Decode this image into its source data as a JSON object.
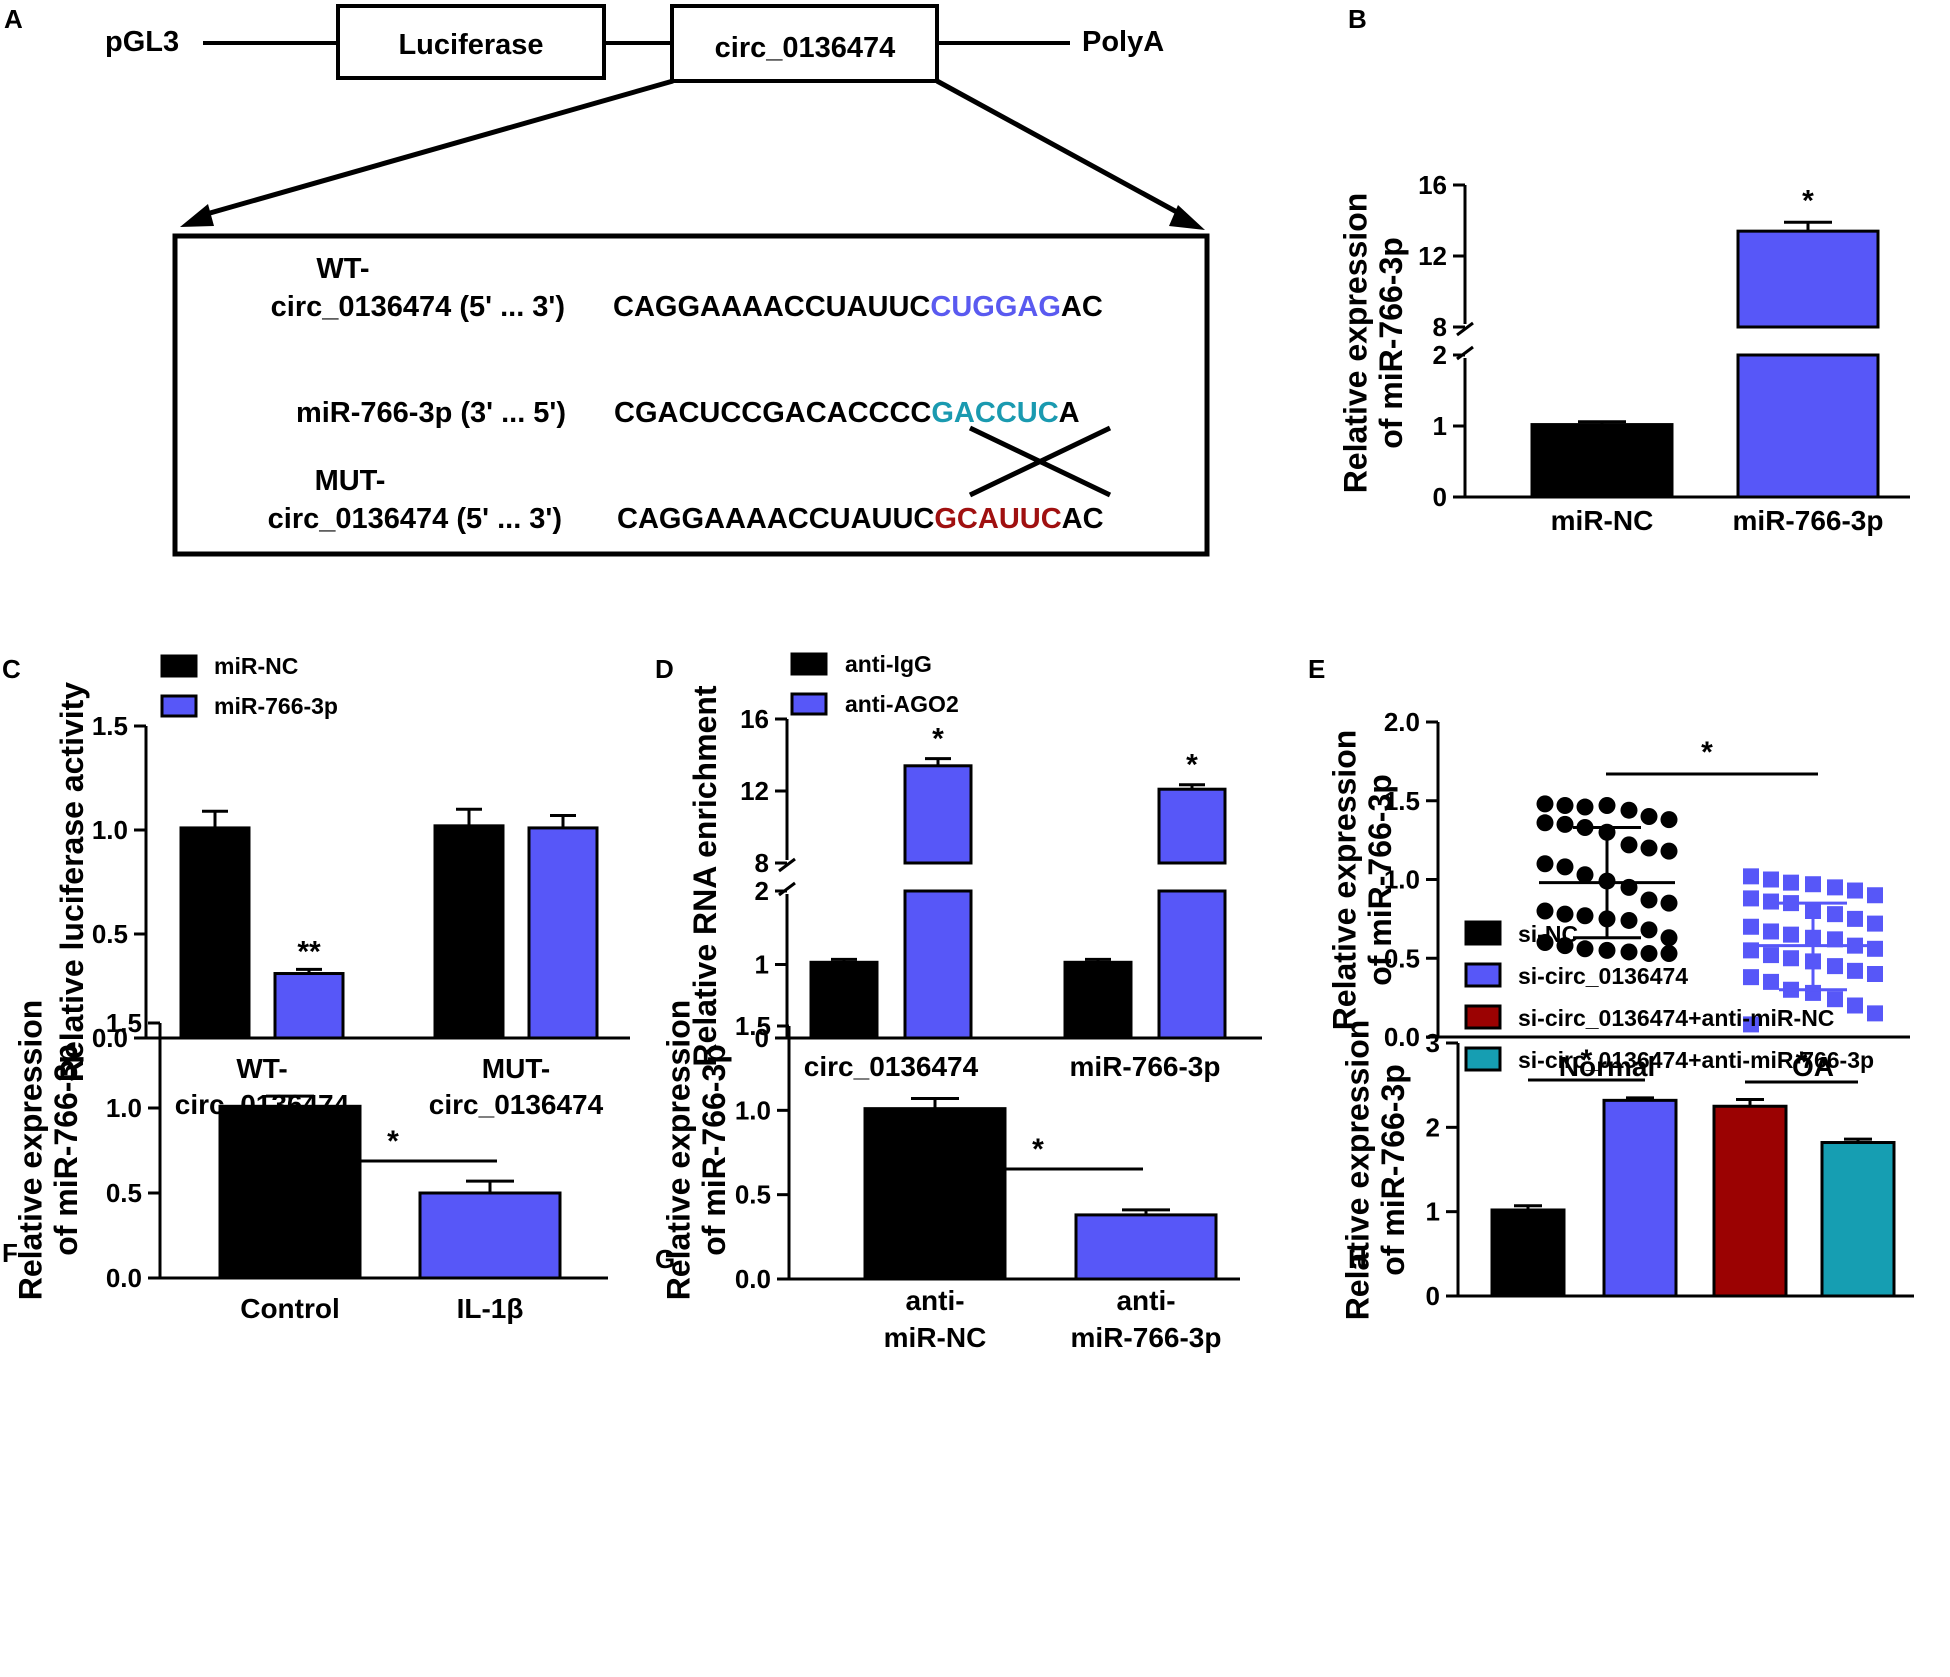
{
  "colors": {
    "black": "#000000",
    "blue": "#5757f8",
    "darkred": "#9b0202",
    "teal": "#169eb2",
    "seq_wt_highlight": "#5a5af0",
    "seq_mir_highlight": "#1a9ab0",
    "seq_mut_highlight": "#a01010"
  },
  "panel_a": {
    "letter": "A",
    "pgl3": "pGL3",
    "luciferase": "Luciferase",
    "circ": "circ_0136474",
    "polya": "PolyA",
    "wt_label_1": "WT-",
    "wt_label_2": "circ_0136474 (5' ... 3')",
    "mir_label": "miR-766-3p (3' ... 5')",
    "mut_label_1": "MUT-",
    "mut_label_2": "circ_0136474 (5' ... 3')",
    "wt_seq_pre": "CAGGAAAACCUAUUC",
    "wt_seq_hl": "CUGGAG",
    "wt_seq_post": "AC",
    "mir_seq_pre": "CGACUCCGACACCCC",
    "mir_seq_hl": "GACCUC",
    "mir_seq_post": "A",
    "mut_seq_pre": "CAGGAAAACCUAUUC",
    "mut_seq_hl": "GCAUUC",
    "mut_seq_post": "AC"
  },
  "chart_data": [
    {
      "id": "B",
      "type": "bar",
      "letter": "B",
      "ylabel": [
        "Relative expression",
        "of miR-766-3p"
      ],
      "categories": [
        "miR-NC",
        "miR-766-3p"
      ],
      "values": [
        1.02,
        13.4
      ],
      "errors": [
        0.04,
        0.5
      ],
      "bar_colors": [
        "#000000",
        "#5757f8"
      ],
      "axis_break": {
        "lower": [
          0,
          2
        ],
        "upper": [
          8,
          16
        ]
      },
      "yticks_lower": [
        0,
        1,
        2
      ],
      "yticks_upper": [
        8,
        12,
        16
      ],
      "annotations": [
        {
          "category_index": 1,
          "text": "*"
        }
      ]
    },
    {
      "id": "C",
      "type": "bar",
      "letter": "C",
      "ylabel": [
        "Relative luciferase activity"
      ],
      "groups": [
        "WT-\ncirc_0136474",
        "MUT-\ncirc_0136474"
      ],
      "series": [
        {
          "name": "miR-NC",
          "values": [
            1.01,
            1.02
          ],
          "errors": [
            0.08,
            0.08
          ],
          "color": "#000000"
        },
        {
          "name": "miR-766-3p",
          "values": [
            0.31,
            1.01
          ],
          "errors": [
            0.02,
            0.06
          ],
          "color": "#5757f8"
        }
      ],
      "ylim": [
        0,
        1.5
      ],
      "yticks": [
        "0.0",
        "0.5",
        "1.0",
        "1.5"
      ],
      "legend": "top-left",
      "annotations": [
        {
          "group_index": 0,
          "series_index": 1,
          "text": "**"
        }
      ]
    },
    {
      "id": "D",
      "type": "bar",
      "letter": "D",
      "ylabel": [
        "Relative RNA enrichment"
      ],
      "groups": [
        "circ_0136474",
        "miR-766-3p"
      ],
      "series": [
        {
          "name": "anti-IgG",
          "values": [
            1.03,
            1.03
          ],
          "errors": [
            0.04,
            0.04
          ],
          "color": "#000000"
        },
        {
          "name": "anti-AGO2",
          "values": [
            13.4,
            12.1
          ],
          "errors": [
            0.4,
            0.25
          ],
          "color": "#5757f8"
        }
      ],
      "axis_break": {
        "lower": [
          0,
          2
        ],
        "upper": [
          8,
          16
        ]
      },
      "yticks_lower": [
        0,
        1,
        2
      ],
      "yticks_upper": [
        8,
        12,
        16
      ],
      "legend": "top-left",
      "annotations": [
        {
          "group_index": 0,
          "series_index": 1,
          "text": "*"
        },
        {
          "group_index": 1,
          "series_index": 1,
          "text": "*"
        }
      ]
    },
    {
      "id": "E",
      "type": "scatter",
      "letter": "E",
      "ylabel": [
        "Relative expression",
        "of miR-766-3p"
      ],
      "categories": [
        "Normal",
        "OA"
      ],
      "ylim": [
        0,
        2.0
      ],
      "yticks": [
        "0.0",
        "0.5",
        "1.0",
        "1.5",
        "2.0"
      ],
      "series": [
        {
          "name": "Normal",
          "marker": "circle",
          "mean": 0.98,
          "sd_upper": 1.33,
          "sd_lower": 0.63,
          "values": [
            1.48,
            1.47,
            1.46,
            1.47,
            1.44,
            1.4,
            1.38,
            1.36,
            1.35,
            1.33,
            1.3,
            1.22,
            1.2,
            1.18,
            1.1,
            1.08,
            1.03,
            0.99,
            0.95,
            0.87,
            0.85,
            0.8,
            0.78,
            0.77,
            0.75,
            0.74,
            0.68,
            0.63,
            0.6,
            0.58,
            0.56,
            0.55,
            0.54,
            0.53,
            0.53
          ]
        },
        {
          "name": "OA",
          "marker": "square",
          "mean": 0.58,
          "sd_upper": 0.85,
          "sd_lower": 0.3,
          "values": [
            1.02,
            1.0,
            0.98,
            0.97,
            0.95,
            0.93,
            0.9,
            0.88,
            0.86,
            0.85,
            0.8,
            0.78,
            0.75,
            0.72,
            0.7,
            0.67,
            0.65,
            0.63,
            0.62,
            0.58,
            0.56,
            0.55,
            0.52,
            0.5,
            0.48,
            0.45,
            0.42,
            0.4,
            0.38,
            0.35,
            0.3,
            0.28,
            0.24,
            0.2,
            0.15,
            0.08
          ]
        }
      ],
      "significance": {
        "from": 0,
        "to": 1,
        "text": "*"
      }
    },
    {
      "id": "F",
      "type": "bar",
      "letter": "F",
      "ylabel": [
        "Relative expression",
        "of miR-766-3p"
      ],
      "categories": [
        "Control",
        "IL-1β"
      ],
      "values": [
        1.01,
        0.5
      ],
      "errors": [
        0.06,
        0.07
      ],
      "bar_colors": [
        "#000000",
        "#5757f8"
      ],
      "ylim": [
        0,
        1.5
      ],
      "yticks": [
        "0.0",
        "0.5",
        "1.0",
        "1.5"
      ],
      "significance": [
        {
          "from": 0,
          "to": 1,
          "text": "*"
        }
      ]
    },
    {
      "id": "G",
      "type": "bar",
      "letter": "G",
      "ylabel": [
        "Relative expression",
        "of miR-766-3p"
      ],
      "categories": [
        "anti-\nmiR-NC",
        "anti-\nmiR-766-3p"
      ],
      "values": [
        1.01,
        0.38
      ],
      "errors": [
        0.06,
        0.03
      ],
      "bar_colors": [
        "#000000",
        "#5757f8"
      ],
      "ylim": [
        0,
        1.5
      ],
      "yticks": [
        "0.0",
        "0.5",
        "1.0",
        "1.5"
      ],
      "significance": [
        {
          "from": 0,
          "to": 1,
          "text": "*"
        }
      ]
    },
    {
      "id": "H",
      "type": "bar",
      "letter": "H",
      "ylabel": [
        "Relative expression",
        "of miR-766-3p"
      ],
      "categories": [
        "si-NC",
        "si-circ_0136474",
        "si-circ_0136474+anti-miR-NC",
        "si-circ_0136474+anti-miR-766-3p"
      ],
      "values": [
        1.02,
        2.32,
        2.25,
        1.82
      ],
      "errors": [
        0.05,
        0.03,
        0.08,
        0.04
      ],
      "bar_colors": [
        "#000000",
        "#5757f8",
        "#9b0202",
        "#169eb2"
      ],
      "ylim": [
        0,
        3
      ],
      "yticks": [
        "0",
        "1",
        "2",
        "3"
      ],
      "legend": "top",
      "significance": [
        {
          "from": 0,
          "to": 1,
          "text": "*"
        },
        {
          "from": 2,
          "to": 3,
          "text": "*"
        }
      ]
    }
  ]
}
